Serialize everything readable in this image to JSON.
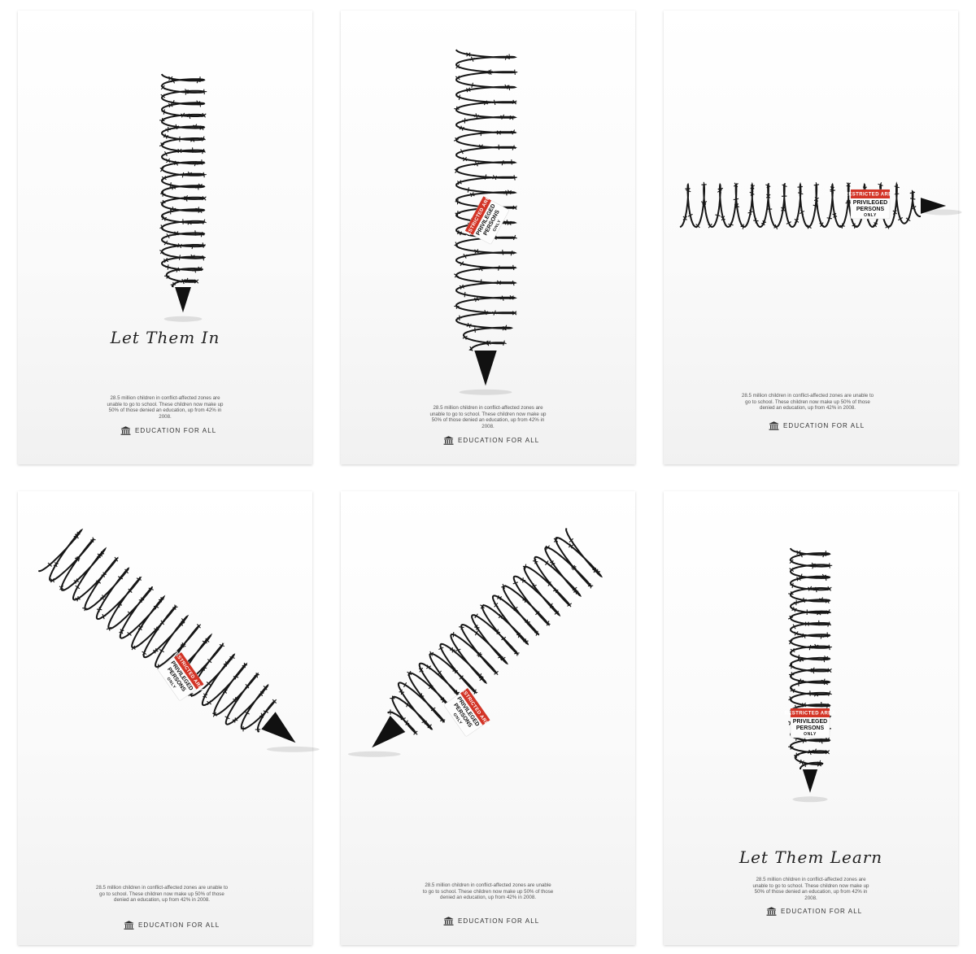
{
  "posters": [
    {
      "headline": "Let Them In",
      "sign": false,
      "body": "28.5 million children in conflict-affected zones are unable to go to school. These children now make up 50% of those denied an education, up from 42% in 2008.",
      "logo_text": "EDUCATION FOR ALL"
    },
    {
      "headline": "",
      "sign": true,
      "body": "28.5 million children in conflict-affected zones are unable to go to school. These children now make up 50% of those denied an education, up from 42% in 2008.",
      "logo_text": "EDUCATION FOR ALL"
    },
    {
      "headline": "",
      "sign": true,
      "body": "28.5 million children in conflict-affected zones are unable to go to school. These children now make up 50% of those denied an education, up from 42% in 2008.",
      "logo_text": "EDUCATION FOR ALL"
    },
    {
      "headline": "",
      "sign": true,
      "body": "28.5 million children in conflict-affected zones are unable to go to school. These children now make up 50% of those denied an education, up from 42% in 2008.",
      "logo_text": "EDUCATION FOR ALL"
    },
    {
      "headline": "",
      "sign": true,
      "body": "28.5 million children in conflict-affected zones are unable to go to school. These children now make up 50% of those denied an education, up from 42% in 2008.",
      "logo_text": "EDUCATION FOR ALL"
    },
    {
      "headline": "Let Them Learn",
      "sign": true,
      "body": "28.5 million children in conflict-affected zones are unable to go to school. These children now make up 50% of those denied an education, up from 42% in 2008.",
      "logo_text": "EDUCATION FOR ALL"
    }
  ],
  "sign": {
    "line1": "RESTRICTED AREA",
    "line2a": "PRIVILEGED",
    "line2b": "PERSONS",
    "line3": "ONLY"
  },
  "icons": {
    "logo": "institution-columns-icon"
  },
  "colors": {
    "sign_red": "#d33426",
    "wire": "#161616"
  }
}
